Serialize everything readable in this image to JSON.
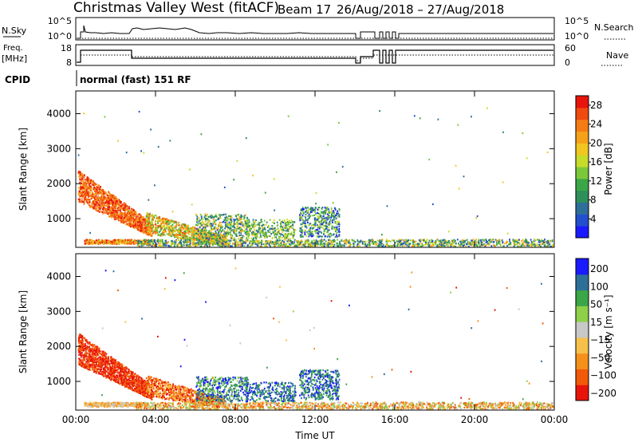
{
  "header": {
    "station": "Christmas Valley West (fitACF)",
    "beam": "Beam 17",
    "date_range": "26/Aug/2018 – 27/Aug/2018"
  },
  "strip_labels": {
    "nsky": "N.Sky",
    "nsearch": "N.Search",
    "freq_line1": "Freq.",
    "freq_line2": "[MHz]",
    "nave": "Nave",
    "cpid": "CPID",
    "cpid_value": "normal (fast) 151 RF"
  },
  "strip_ticks": {
    "nsky_left": [
      "10^5",
      "10^0"
    ],
    "nsky_right": [
      "10^5",
      "10^0"
    ],
    "freq_left": [
      "18",
      "8"
    ],
    "nave_right": [
      "60",
      "0"
    ]
  },
  "chart_data": [
    {
      "type": "heatmap",
      "panel": "power",
      "ylabel": "Slant Range [km]",
      "xlabel": "Time UT",
      "x_ticks": [
        "00:00",
        "04:00",
        "08:00",
        "12:00",
        "16:00",
        "20:00",
        "00:00"
      ],
      "xlim_hours": [
        0,
        24
      ],
      "y_ticks": [
        1000,
        2000,
        3000,
        4000
      ],
      "ylim": [
        180,
        4650
      ],
      "colorbar": {
        "label": "Power [dB]",
        "ticks": [
          4,
          8,
          12,
          16,
          20,
          24,
          28
        ],
        "range": [
          0,
          30
        ]
      }
    },
    {
      "type": "heatmap",
      "panel": "velocity",
      "ylabel": "Slant Range [km]",
      "xlabel": "Time UT",
      "x_ticks": [
        "00:00",
        "04:00",
        "08:00",
        "12:00",
        "16:00",
        "20:00",
        "00:00"
      ],
      "xlim_hours": [
        0,
        24
      ],
      "y_ticks": [
        1000,
        2000,
        3000,
        4000
      ],
      "ylim": [
        180,
        4650
      ],
      "colorbar": {
        "label": "Velocity [m s⁻¹]",
        "ticks": [
          "200",
          "100",
          "50",
          "15",
          "−15",
          "−50",
          "−100",
          "−200"
        ]
      }
    }
  ],
  "colors": {
    "power_scale": [
      "#1a1aff",
      "#224fcc",
      "#2e6f9a",
      "#2f8f5a",
      "#3aa648",
      "#7bc83a",
      "#c7dc2a",
      "#f2c620",
      "#f6a11a",
      "#f57c14",
      "#f04a10",
      "#e8140c"
    ],
    "velocity_scale": [
      "#e8140c",
      "#f25a0a",
      "#f5901a",
      "#f6c04a",
      "#c8c8c8",
      "#8fd04a",
      "#3aa648",
      "#2e6f9a",
      "#1a1aff"
    ]
  }
}
